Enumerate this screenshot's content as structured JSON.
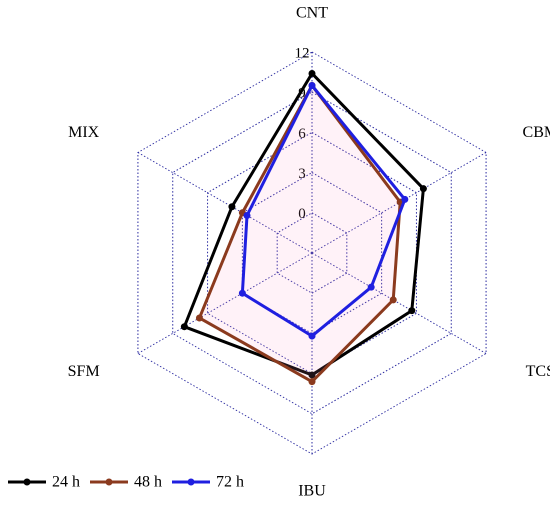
{
  "chart_data": {
    "type": "radar",
    "categories": [
      "CNT",
      "CBM",
      "TCS",
      "IBU",
      "SFM",
      "MIX"
    ],
    "ylim": [
      -3,
      12
    ],
    "yticks": [
      0,
      3,
      6,
      9,
      12
    ],
    "grid": true,
    "series": [
      {
        "name": "24 h",
        "color": "#000000",
        "values": [
          10.4,
          6.6,
          5.6,
          6.1,
          8.0,
          3.9
        ]
      },
      {
        "name": "48 h",
        "color": "#8b3a1e",
        "values": [
          9.5,
          4.6,
          4.0,
          6.6,
          6.7,
          3.0
        ]
      },
      {
        "name": "72 h",
        "color": "#1f1fe0",
        "values": [
          9.5,
          5.0,
          2.1,
          3.2,
          3.0,
          2.6
        ]
      }
    ]
  }
}
